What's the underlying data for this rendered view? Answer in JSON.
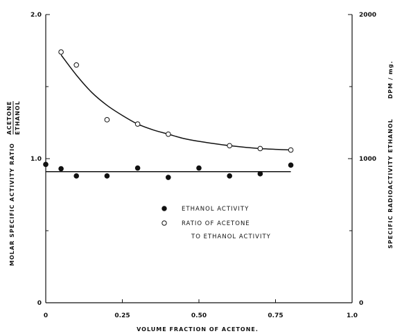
{
  "chart_data": {
    "type": "scatter",
    "xlabel": "VOLUME FRACTION OF ACETONE.",
    "ylabel_left_main": "MOLAR SPECIFIC ACTIVITY RATIO",
    "ylabel_left_fraction_num": "ACETONE",
    "ylabel_left_fraction_den": "ETHANOL",
    "ylabel_right_main": "SPECIFIC RADIOACTIVITY ETHANOL",
    "ylabel_right_unit": "DPM / mg.",
    "xlim": [
      0,
      1.0
    ],
    "ylim_left": [
      0,
      2.0
    ],
    "ylim_right": [
      0,
      2000
    ],
    "x_ticks": [
      {
        "value": 0,
        "label": "0"
      },
      {
        "value": 0.25,
        "label": "0.25"
      },
      {
        "value": 0.5,
        "label": "0.50"
      },
      {
        "value": 0.75,
        "label": "0.75"
      },
      {
        "value": 1.0,
        "label": "1.0"
      }
    ],
    "y_left_ticks": [
      {
        "value": 0,
        "label": "0"
      },
      {
        "value": 1.0,
        "label": "1.0"
      },
      {
        "value": 2.0,
        "label": "2.0"
      }
    ],
    "y_left_minor": [
      0.5,
      1.5
    ],
    "y_right_ticks": [
      {
        "value": 0,
        "label": "0"
      },
      {
        "value": 1000,
        "label": "1000"
      },
      {
        "value": 2000,
        "label": "2000"
      }
    ],
    "y_right_minor": [
      500,
      1500
    ],
    "series": [
      {
        "name": "ETHANOL ACTIVITY",
        "marker": "filled-circle",
        "axis": "right",
        "x": [
          0,
          0.05,
          0.1,
          0.2,
          0.3,
          0.4,
          0.5,
          0.6,
          0.7,
          0.8
        ],
        "y": [
          960,
          930,
          880,
          880,
          935,
          870,
          935,
          880,
          895,
          955
        ]
      },
      {
        "name": "RATIO OF ACETONE TO ETHANOL ACTIVITY",
        "legend_lines": [
          "RATIO OF ACETONE",
          "TO ETHANOL ACTIVITY"
        ],
        "marker": "open-circle",
        "axis": "left",
        "x": [
          0.05,
          0.1,
          0.2,
          0.3,
          0.4,
          0.6,
          0.7,
          0.8
        ],
        "y": [
          1.74,
          1.65,
          1.27,
          1.24,
          1.17,
          1.09,
          1.07,
          1.06
        ]
      }
    ],
    "fit_lines": [
      {
        "for": "ETHANOL ACTIVITY",
        "axis": "right",
        "x": [
          0,
          0.8
        ],
        "y": [
          910,
          910
        ]
      },
      {
        "for": "RATIO OF ACETONE TO ETHANOL ACTIVITY",
        "axis": "left",
        "x": [
          0.05,
          0.1,
          0.15,
          0.2,
          0.25,
          0.3,
          0.35,
          0.4,
          0.45,
          0.5,
          0.6,
          0.7,
          0.8
        ],
        "y": [
          1.72,
          1.58,
          1.46,
          1.37,
          1.3,
          1.24,
          1.2,
          1.17,
          1.14,
          1.12,
          1.09,
          1.07,
          1.06
        ]
      }
    ]
  }
}
